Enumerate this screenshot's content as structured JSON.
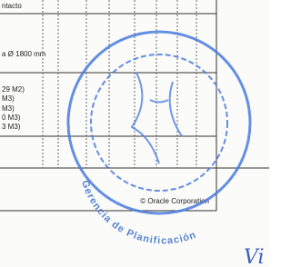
{
  "table": {
    "header": "ntacto",
    "diameter": "a Ø 1800 mm",
    "volumes": [
      "29 M2)",
      "M3)",
      "M3)",
      "0 M3)",
      "3 M3)"
    ]
  },
  "footer": "© Oracle Corporation",
  "stamp": {
    "text": "Gerencia de Planificación"
  },
  "handwriting": "Vi"
}
